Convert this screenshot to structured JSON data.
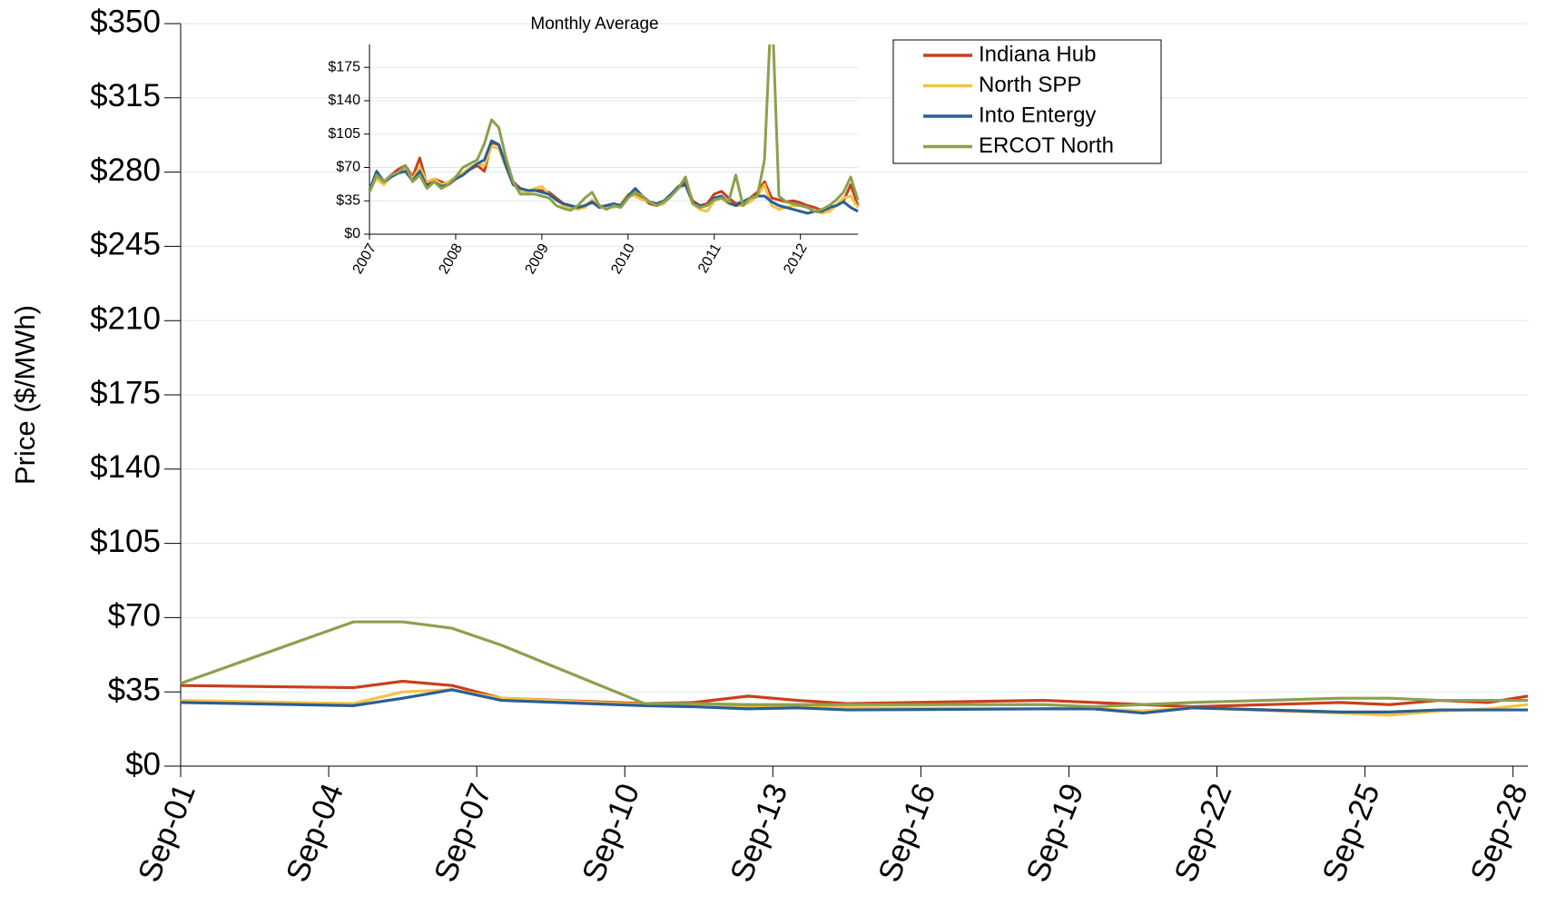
{
  "chart_data": [
    {
      "type": "line",
      "y_label": "Price ($/MWh)",
      "x": [
        1,
        4.5,
        5.5,
        6.5,
        7.5,
        10.4,
        11.4,
        12.5,
        13.5,
        14.5,
        18.5,
        19.5,
        20.5,
        21.5,
        24.5,
        25.5,
        26.5,
        27.5,
        28.3
      ],
      "xlim": [
        1,
        28.3
      ],
      "xticks": [
        {
          "value": 1,
          "label": "Sep-01"
        },
        {
          "value": 4,
          "label": "Sep-04"
        },
        {
          "value": 7,
          "label": "Sep-07"
        },
        {
          "value": 10,
          "label": "Sep-10"
        },
        {
          "value": 13,
          "label": "Sep-13"
        },
        {
          "value": 16,
          "label": "Sep-16"
        },
        {
          "value": 19,
          "label": "Sep-19"
        },
        {
          "value": 22,
          "label": "Sep-22"
        },
        {
          "value": 25,
          "label": "Sep-25"
        },
        {
          "value": 28,
          "label": "Sep-28"
        }
      ],
      "ylim": [
        0,
        350
      ],
      "yticks": [
        {
          "value": 0,
          "label": "$0"
        },
        {
          "value": 35,
          "label": "$35"
        },
        {
          "value": 70,
          "label": "$70"
        },
        {
          "value": 105,
          "label": "$105"
        },
        {
          "value": 140,
          "label": "$140"
        },
        {
          "value": 175,
          "label": "$175"
        },
        {
          "value": 210,
          "label": "$210"
        },
        {
          "value": 245,
          "label": "$245"
        },
        {
          "value": 280,
          "label": "$280"
        },
        {
          "value": 315,
          "label": "$315"
        },
        {
          "value": 350,
          "label": "$350"
        }
      ],
      "grid": true,
      "legend": "top",
      "series": [
        {
          "name": "Indiana Hub",
          "color": "#c8401a",
          "values": [
            38,
            37,
            40,
            38,
            32,
            29.5,
            30,
            33,
            31,
            29.5,
            31,
            30,
            29,
            28,
            30,
            29,
            31,
            30,
            33
          ]
        },
        {
          "name": "North SPP",
          "color": "#f5c242",
          "values": [
            31,
            29.5,
            35,
            36,
            32,
            29,
            29,
            28,
            28,
            27.5,
            27,
            27,
            26,
            27.5,
            25,
            24,
            26,
            27,
            29
          ]
        },
        {
          "name": "Into Entergy",
          "color": "#2a5f94",
          "values": [
            30,
            28.5,
            32,
            36,
            31,
            28.5,
            28,
            27,
            27.5,
            26.5,
            27,
            27,
            25,
            27.5,
            25.5,
            25.5,
            26.5,
            26.5,
            26.5
          ]
        },
        {
          "name": "ERCOT North",
          "color": "#8ca04c",
          "values": [
            39,
            68,
            68,
            65,
            57,
            29.5,
            29.5,
            29,
            29,
            29,
            29,
            28,
            29,
            30,
            32,
            32,
            31,
            31,
            31
          ]
        }
      ]
    },
    {
      "type": "line",
      "title": "Monthly Average",
      "categories": [
        "2007",
        null,
        null,
        null,
        null,
        null,
        null,
        null,
        null,
        null,
        null,
        null,
        "2008",
        null,
        null,
        null,
        null,
        null,
        null,
        null,
        null,
        null,
        null,
        null,
        "2009",
        null,
        null,
        null,
        null,
        null,
        null,
        null,
        null,
        null,
        null,
        null,
        "2010",
        null,
        null,
        null,
        null,
        null,
        null,
        null,
        null,
        null,
        null,
        null,
        "2011",
        null,
        null,
        null,
        null,
        null,
        null,
        null,
        null,
        null,
        null,
        null,
        "2012",
        null,
        null,
        null,
        null,
        null,
        null,
        null,
        null
      ],
      "ylim": [
        0,
        199
      ],
      "yticks": [
        {
          "value": 0,
          "label": "$0"
        },
        {
          "value": 35,
          "label": "$35"
        },
        {
          "value": 70,
          "label": "$70"
        },
        {
          "value": 105,
          "label": "$105"
        },
        {
          "value": 140,
          "label": "$140"
        },
        {
          "value": 175,
          "label": "$175"
        }
      ],
      "grid": true,
      "series": [
        {
          "color": "#c8401a",
          "values": [
            45,
            60,
            55,
            62,
            68,
            72,
            60,
            80,
            52,
            58,
            55,
            52,
            58,
            62,
            68,
            72,
            66,
            96,
            94,
            72,
            55,
            48,
            45,
            46,
            46,
            44,
            38,
            32,
            30,
            28,
            30,
            33,
            29,
            30,
            32,
            30,
            40,
            42,
            38,
            32,
            30,
            33,
            40,
            50,
            55,
            35,
            30,
            32,
            42,
            45,
            38,
            32,
            34,
            38,
            44,
            55,
            38,
            36,
            34,
            35,
            33,
            30,
            28,
            25,
            27,
            30,
            35,
            52,
            30
          ]
        },
        {
          "color": "#f5c242",
          "values": [
            48,
            58,
            52,
            60,
            65,
            70,
            58,
            70,
            55,
            58,
            52,
            55,
            60,
            64,
            70,
            74,
            72,
            92,
            90,
            70,
            52,
            46,
            44,
            48,
            50,
            42,
            36,
            30,
            28,
            26,
            28,
            36,
            28,
            30,
            28,
            32,
            42,
            40,
            36,
            34,
            30,
            32,
            42,
            48,
            52,
            32,
            26,
            24,
            35,
            38,
            32,
            30,
            30,
            34,
            40,
            52,
            30,
            26,
            28,
            30,
            30,
            28,
            24,
            22,
            24,
            30,
            38,
            40,
            28
          ]
        },
        {
          "color": "#2a5f94",
          "values": [
            46,
            66,
            55,
            60,
            64,
            66,
            56,
            66,
            50,
            55,
            50,
            52,
            58,
            62,
            68,
            74,
            78,
            98,
            94,
            72,
            52,
            48,
            46,
            46,
            44,
            42,
            36,
            32,
            30,
            28,
            30,
            34,
            28,
            30,
            32,
            30,
            40,
            48,
            40,
            34,
            32,
            35,
            42,
            50,
            52,
            33,
            30,
            30,
            38,
            40,
            33,
            30,
            34,
            38,
            40,
            40,
            34,
            30,
            28,
            26,
            24,
            22,
            24,
            24,
            28,
            30,
            34,
            28,
            24
          ]
        },
        {
          "color": "#8ca04c",
          "values": [
            44,
            62,
            55,
            62,
            65,
            72,
            55,
            62,
            48,
            55,
            48,
            52,
            60,
            70,
            74,
            78,
            95,
            120,
            112,
            80,
            55,
            42,
            42,
            42,
            40,
            38,
            30,
            27,
            25,
            30,
            38,
            44,
            30,
            26,
            30,
            28,
            38,
            44,
            40,
            34,
            30,
            34,
            40,
            48,
            60,
            32,
            28,
            30,
            36,
            38,
            34,
            62,
            30,
            38,
            40,
            78,
            250,
            40,
            34,
            32,
            30,
            28,
            24,
            26,
            30,
            36,
            44,
            60,
            36
          ]
        }
      ]
    }
  ]
}
